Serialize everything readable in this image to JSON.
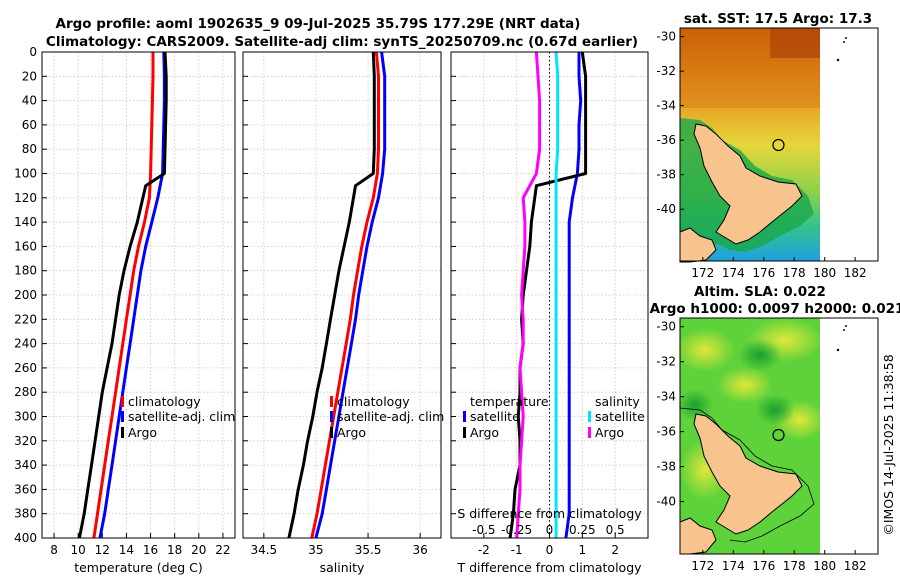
{
  "header": {
    "title_line1": "Argo profile: aoml 1902635_9 09-Jul-2025 35.79S 177.29E (NRT data)",
    "title_line2": "Climatology: CARS2009. Satellite-adj clim: synTS_20250709.nc (0.67d earlier)"
  },
  "colors": {
    "climatology": "#ff0000",
    "satellite": "#0000ff",
    "argo": "#000000",
    "sat_salinity": "#00e5ff",
    "argo_salinity": "#ff00ff"
  },
  "chart_data": [
    {
      "type": "line",
      "name": "temperature-profile",
      "xlabel": "temperature (deg C)",
      "xlim": [
        7,
        23
      ],
      "xticks": [
        8,
        10,
        12,
        14,
        16,
        18,
        20,
        22
      ],
      "ylim": [
        400,
        0
      ],
      "yticks": [
        0,
        20,
        40,
        60,
        80,
        100,
        120,
        140,
        160,
        180,
        200,
        220,
        240,
        260,
        280,
        300,
        320,
        340,
        360,
        380,
        400
      ],
      "series": [
        {
          "name": "climatology",
          "color": "#ff0000",
          "x": [
            16.2,
            16.2,
            16.15,
            16.1,
            16.05,
            16.0,
            15.9,
            15.5,
            15.0,
            14.6,
            14.3,
            14.0,
            13.7,
            13.4,
            13.1,
            12.8,
            12.5,
            12.2,
            11.9,
            11.6,
            11.3
          ],
          "y": [
            0,
            20,
            40,
            60,
            80,
            100,
            120,
            140,
            160,
            180,
            200,
            220,
            240,
            260,
            280,
            300,
            320,
            340,
            360,
            380,
            400
          ]
        },
        {
          "name": "satellite-adj. clim",
          "color": "#0000ff",
          "x": [
            17.1,
            17.15,
            17.15,
            17.1,
            17.05,
            17.0,
            16.6,
            16.1,
            15.6,
            15.2,
            14.9,
            14.6,
            14.3,
            14.0,
            13.7,
            13.4,
            13.1,
            12.8,
            12.5,
            12.2,
            11.8
          ],
          "y": [
            0,
            20,
            40,
            60,
            80,
            100,
            120,
            140,
            160,
            180,
            200,
            220,
            240,
            260,
            280,
            300,
            320,
            340,
            360,
            380,
            400
          ]
        },
        {
          "name": "Argo",
          "color": "#000000",
          "x": [
            17.2,
            17.3,
            17.3,
            17.25,
            17.2,
            17.15,
            15.6,
            14.9,
            14.3,
            13.8,
            13.4,
            13.1,
            12.8,
            12.4,
            12.0,
            11.7,
            11.4,
            11.1,
            10.8,
            10.5,
            10.1
          ],
          "y": [
            0,
            20,
            40,
            60,
            80,
            100,
            110,
            140,
            160,
            180,
            200,
            220,
            240,
            260,
            280,
            300,
            320,
            340,
            360,
            380,
            400
          ]
        }
      ],
      "legend": [
        "climatology",
        "satellite-adj. clim",
        "Argo"
      ]
    },
    {
      "type": "line",
      "name": "salinity-profile",
      "xlabel": "salinity",
      "xlim": [
        34.3,
        36.2
      ],
      "xticks": [
        34.5,
        35,
        35.5,
        36
      ],
      "ylim": [
        400,
        0
      ],
      "series": [
        {
          "name": "climatology",
          "color": "#ff0000",
          "x": [
            35.58,
            35.6,
            35.6,
            35.6,
            35.6,
            35.59,
            35.55,
            35.49,
            35.44,
            35.4,
            35.36,
            35.33,
            35.29,
            35.25,
            35.21,
            35.17,
            35.13,
            35.09,
            35.05,
            35.01,
            34.96
          ],
          "y": [
            0,
            20,
            40,
            60,
            80,
            100,
            120,
            140,
            160,
            180,
            200,
            220,
            240,
            260,
            280,
            300,
            320,
            340,
            360,
            380,
            400
          ]
        },
        {
          "name": "satellite-adj. clim",
          "color": "#0000ff",
          "x": [
            35.63,
            35.66,
            35.66,
            35.66,
            35.66,
            35.64,
            35.6,
            35.54,
            35.49,
            35.45,
            35.41,
            35.38,
            35.34,
            35.3,
            35.26,
            35.22,
            35.18,
            35.14,
            35.1,
            35.06,
            35.0
          ],
          "y": [
            0,
            20,
            40,
            60,
            80,
            100,
            120,
            140,
            160,
            180,
            200,
            220,
            240,
            260,
            280,
            300,
            320,
            340,
            360,
            380,
            400
          ]
        },
        {
          "name": "Argo",
          "color": "#000000",
          "x": [
            35.55,
            35.56,
            35.56,
            35.56,
            35.56,
            35.55,
            35.38,
            35.32,
            35.27,
            35.22,
            35.18,
            35.14,
            35.1,
            35.06,
            35.01,
            34.97,
            34.92,
            34.88,
            34.83,
            34.79,
            34.74
          ],
          "y": [
            0,
            20,
            40,
            60,
            80,
            100,
            110,
            140,
            160,
            180,
            200,
            220,
            240,
            260,
            280,
            300,
            320,
            340,
            360,
            380,
            400
          ]
        }
      ],
      "legend": [
        "climatology",
        "satellite-adj. clim",
        "Argo"
      ]
    },
    {
      "type": "line",
      "name": "difference-profile",
      "xlabel": "T difference from climatology",
      "xlabel_top": "S difference from climatology",
      "xlim": [
        -3,
        3
      ],
      "xticks": [
        -2,
        -1,
        0,
        1,
        2
      ],
      "xticks_top": [
        -0.5,
        -0.25,
        0,
        0.25,
        0.5
      ],
      "xticks_top_labels": [
        "-0.5",
        "-0.25",
        "0",
        "0.25",
        "0.5"
      ],
      "ylim": [
        400,
        0
      ],
      "series": [
        {
          "name": "temperature satellite",
          "color": "#0000ff",
          "x": [
            0.9,
            0.9,
            0.95,
            0.9,
            0.9,
            0.85,
            0.7,
            0.6,
            0.6,
            0.6,
            0.6,
            0.6,
            0.6,
            0.6,
            0.6,
            0.6,
            0.6,
            0.6,
            0.6,
            0.6,
            0.5
          ],
          "y": [
            0,
            20,
            40,
            60,
            80,
            100,
            120,
            140,
            160,
            180,
            200,
            220,
            240,
            260,
            280,
            300,
            320,
            340,
            360,
            380,
            400
          ]
        },
        {
          "name": "temperature Argo",
          "color": "#000000",
          "x": [
            1.0,
            1.1,
            1.1,
            1.1,
            1.1,
            1.1,
            -0.4,
            -0.55,
            -0.6,
            -0.7,
            -0.8,
            -0.85,
            -0.8,
            -0.9,
            -0.9,
            -0.95,
            -0.9,
            -0.9,
            -1.05,
            -1.1,
            -1.2
          ],
          "y": [
            0,
            20,
            40,
            60,
            80,
            100,
            110,
            140,
            160,
            180,
            200,
            220,
            240,
            260,
            280,
            300,
            320,
            340,
            360,
            380,
            400
          ]
        },
        {
          "name": "salinity satellite",
          "color": "#00e5ff",
          "x": [
            0.2,
            0.25,
            0.25,
            0.25,
            0.25,
            0.2,
            0.2,
            0.2,
            0.2,
            0.2,
            0.2,
            0.2,
            0.2,
            0.2,
            0.2,
            0.2,
            0.2,
            0.2,
            0.2,
            0.2,
            0.2
          ],
          "y": [
            0,
            20,
            40,
            60,
            80,
            100,
            120,
            140,
            160,
            180,
            200,
            220,
            240,
            260,
            280,
            300,
            320,
            340,
            360,
            380,
            400
          ]
        },
        {
          "name": "salinity Argo",
          "color": "#ff00ff",
          "x": [
            -0.4,
            -0.35,
            -0.3,
            -0.3,
            -0.3,
            -0.4,
            -0.8,
            -0.75,
            -0.75,
            -0.8,
            -0.85,
            -0.8,
            -0.8,
            -0.9,
            -0.85,
            -0.8,
            -0.85,
            -0.9,
            -0.9,
            -0.95,
            -1.0
          ],
          "y": [
            0,
            20,
            40,
            60,
            80,
            100,
            120,
            140,
            160,
            180,
            200,
            220,
            240,
            260,
            280,
            300,
            320,
            340,
            360,
            380,
            400
          ]
        }
      ],
      "legend_left": {
        "title": "temperature",
        "items": [
          "satellite",
          "Argo"
        ]
      },
      "legend_right": {
        "title": "salinity",
        "items": [
          "satellite",
          "Argo"
        ]
      }
    },
    {
      "type": "heatmap",
      "name": "sst-map",
      "title": "sat. SST: 17.5 Argo: 17.3",
      "xticks": [
        172,
        174,
        176,
        178,
        180,
        182
      ],
      "yticks": [
        -30,
        -32,
        -34,
        -36,
        -38,
        -40
      ],
      "xlim": [
        170.5,
        183.5
      ],
      "ylim": [
        -43,
        -29.5
      ]
    },
    {
      "type": "heatmap",
      "name": "sla-map",
      "title": "Altim. SLA: 0.022",
      "subtitle": "Argo h1000: 0.0097 h2000: 0.021",
      "xticks": [
        172,
        174,
        176,
        178,
        180,
        182
      ],
      "yticks": [
        -30,
        -32,
        -34,
        -36,
        -38,
        -40
      ],
      "xlim": [
        170.5,
        183.5
      ],
      "ylim": [
        -43,
        -29.5
      ]
    }
  ],
  "footer": {
    "stamp": "©IMOS 14-Jul-2025 11:38:58"
  }
}
